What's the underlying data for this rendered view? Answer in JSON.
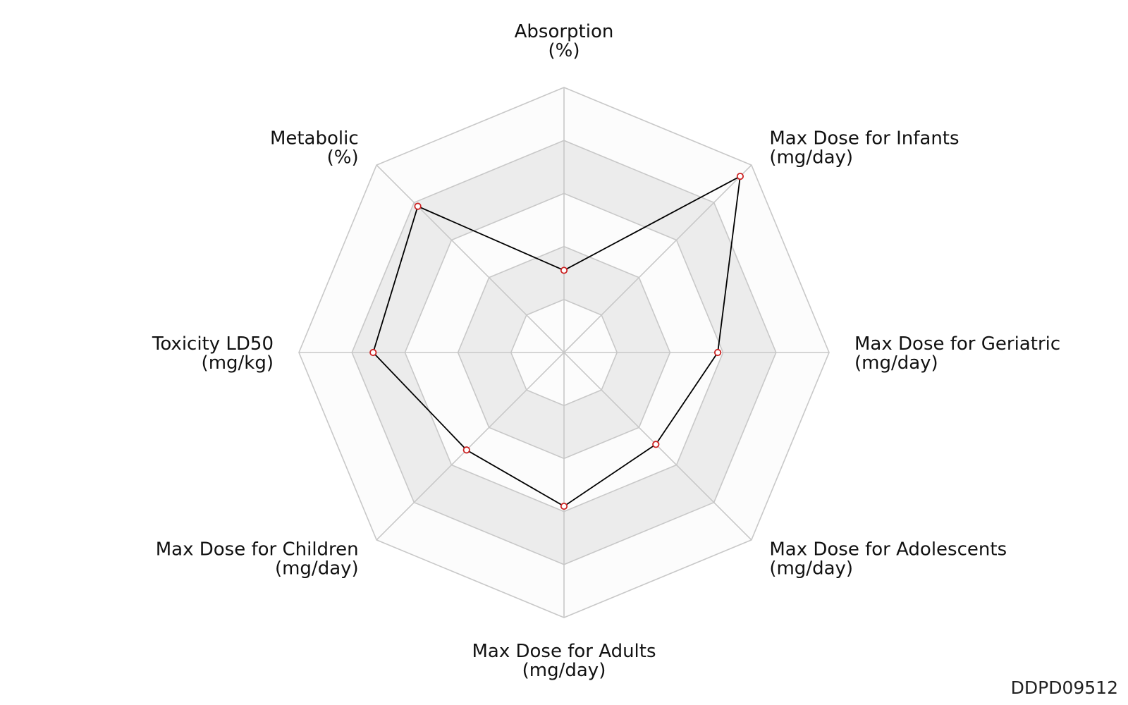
{
  "chart_data": {
    "type": "radar",
    "grid_levels": 5,
    "axes": [
      {
        "name": "Absorption",
        "unit": "(%)",
        "value": 0.31
      },
      {
        "name": "Max Dose for Infants",
        "unit": "(mg/day)",
        "value": 0.94
      },
      {
        "name": "Max Dose for Geriatric",
        "unit": "(mg/day)",
        "value": 0.58
      },
      {
        "name": "Max Dose for Adolescents",
        "unit": "(mg/day)",
        "value": 0.49
      },
      {
        "name": "Max Dose for Adults",
        "unit": "(mg/day)",
        "value": 0.58
      },
      {
        "name": "Max Dose for Children",
        "unit": "(mg/day)",
        "value": 0.52
      },
      {
        "name": "Toxicity LD50",
        "unit": "(mg/kg)",
        "value": 0.72
      },
      {
        "name": "Metabolic",
        "unit": "(%)",
        "value": 0.78
      }
    ],
    "colors": {
      "line": "#000000",
      "marker_stroke": "#cc2222",
      "marker_fill": "#ffffff",
      "grid": "#c8c8c8",
      "band_shaded": "#ececec",
      "band_light": "#fcfcfc"
    }
  },
  "watermark": "DDPD09512"
}
